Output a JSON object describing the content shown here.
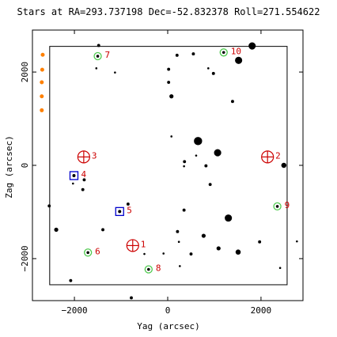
{
  "chart_data": {
    "type": "scatter",
    "title": "Stars at RA=293.737198 Dec=-52.832378 Roll=271.554622",
    "xlabel": "Yag (arcsec)",
    "ylabel": "Zag (arcsec)",
    "xlim": [
      -2900,
      2900
    ],
    "ylim": [
      -2900,
      2900
    ],
    "x_ticks": [
      -2000,
      0,
      2000
    ],
    "y_ticks": [
      -2000,
      0,
      2000
    ],
    "x_tick_labels": [
      "−2000",
      "0",
      "2000"
    ],
    "y_tick_labels": [
      "−2000",
      "0",
      "2000"
    ],
    "grid": false,
    "ccd_box": {
      "yag": [
        -2530,
        2560
      ],
      "zag": [
        -2560,
        2550
      ]
    },
    "field_stars": [
      {
        "yag": 1810,
        "zag": 2560,
        "mag": 8.5
      },
      {
        "yag": 1520,
        "zag": 2250,
        "mag": 8.5
      },
      {
        "yag": 200,
        "zag": 2360,
        "mag": 10.5
      },
      {
        "yag": 550,
        "zag": 2390,
        "mag": 10.5
      },
      {
        "yag": 20,
        "zag": 2060,
        "mag": 10.5
      },
      {
        "yag": 980,
        "zag": 1970,
        "mag": 10.5
      },
      {
        "yag": 20,
        "zag": 1780,
        "mag": 10.5
      },
      {
        "yag": 80,
        "zag": 1480,
        "mag": 10
      },
      {
        "yag": 1390,
        "zag": 1370,
        "mag": 10.5
      },
      {
        "yag": -1480,
        "zag": 2570,
        "mag": 10.5
      },
      {
        "yag": -1530,
        "zag": 2080,
        "mag": 11
      },
      {
        "yag": 870,
        "zag": 2080,
        "mag": 11
      },
      {
        "yag": -1130,
        "zag": 1990,
        "mag": 11
      },
      {
        "yag": 80,
        "zag": 620,
        "mag": 11
      },
      {
        "yag": 650,
        "zag": 520,
        "mag": 8
      },
      {
        "yag": 1070,
        "zag": 270,
        "mag": 8.5
      },
      {
        "yag": 610,
        "zag": 210,
        "mag": 11
      },
      {
        "yag": 360,
        "zag": 80,
        "mag": 10.5
      },
      {
        "yag": 350,
        "zag": -20,
        "mag": 11
      },
      {
        "yag": 2490,
        "zag": 0,
        "mag": 9.5
      },
      {
        "yag": 820,
        "zag": -10,
        "mag": 10.5
      },
      {
        "yag": -1790,
        "zag": -310,
        "mag": 10.5
      },
      {
        "yag": -2030,
        "zag": -390,
        "mag": 11
      },
      {
        "yag": -1820,
        "zag": -520,
        "mag": 10.5
      },
      {
        "yag": 910,
        "zag": -410,
        "mag": 10.5
      },
      {
        "yag": -850,
        "zag": -830,
        "mag": 10.5
      },
      {
        "yag": -2540,
        "zag": -870,
        "mag": 10.5
      },
      {
        "yag": 350,
        "zag": -960,
        "mag": 10.5
      },
      {
        "yag": 1300,
        "zag": -1130,
        "mag": 8.5
      },
      {
        "yag": -2390,
        "zag": -1380,
        "mag": 10
      },
      {
        "yag": -1390,
        "zag": -1380,
        "mag": 10.5
      },
      {
        "yag": 210,
        "zag": -1420,
        "mag": 10.5
      },
      {
        "yag": 770,
        "zag": -1510,
        "mag": 10
      },
      {
        "yag": 1970,
        "zag": -1640,
        "mag": 10.5
      },
      {
        "yag": 240,
        "zag": -1640,
        "mag": 11
      },
      {
        "yag": 1090,
        "zag": -1780,
        "mag": 10
      },
      {
        "yag": 1510,
        "zag": -1860,
        "mag": 9.5
      },
      {
        "yag": -500,
        "zag": -1900,
        "mag": 11
      },
      {
        "yag": 500,
        "zag": -1900,
        "mag": 10.5
      },
      {
        "yag": -90,
        "zag": -1890,
        "mag": 11
      },
      {
        "yag": 260,
        "zag": -2160,
        "mag": 11
      },
      {
        "yag": 2410,
        "zag": -2200,
        "mag": 11
      },
      {
        "yag": 2770,
        "zag": -1630,
        "mag": 11
      },
      {
        "yag": -2080,
        "zag": -2470,
        "mag": 10.5
      },
      {
        "yag": -780,
        "zag": -2840,
        "mag": 10.5
      }
    ],
    "guide_stars": [
      {
        "label": "7",
        "yag": -1500,
        "zag": 2340
      },
      {
        "label": "10",
        "yag": 1200,
        "zag": 2420
      },
      {
        "label": "6",
        "yag": -1710,
        "zag": -1870
      },
      {
        "label": "8",
        "yag": -410,
        "zag": -2230
      },
      {
        "label": "9",
        "yag": 2350,
        "zag": -880
      }
    ],
    "acq_stars": [
      {
        "label": "4",
        "yag": -2010,
        "zag": -220
      },
      {
        "label": "5",
        "yag": -1030,
        "zag": -990
      }
    ],
    "fid_lights": [
      {
        "label": "1",
        "yag": -750,
        "zag": -1720
      },
      {
        "label": "2",
        "yag": 2140,
        "zag": 180
      },
      {
        "label": "3",
        "yag": -1800,
        "zag": 180
      }
    ],
    "bad_stars": [
      {
        "yag": -2680,
        "zag": 2370
      },
      {
        "yag": -2690,
        "zag": 2050
      },
      {
        "yag": -2700,
        "zag": 1780
      },
      {
        "yag": -2700,
        "zag": 1480
      },
      {
        "yag": -2700,
        "zag": 1180
      }
    ],
    "colors": {
      "field": "#000000",
      "guide": "#4fc94f",
      "acq": "#0000cc",
      "fid": "#cc0000",
      "bad": "#ff8000",
      "label": "#cc0000",
      "box": "#000000"
    }
  }
}
